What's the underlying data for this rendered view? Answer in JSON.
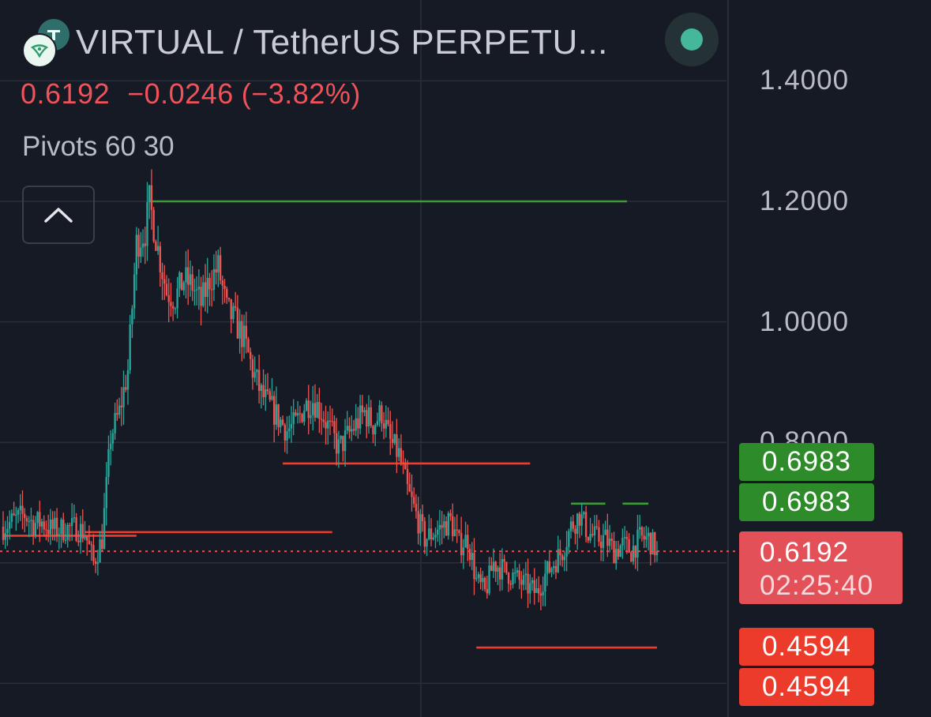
{
  "header": {
    "symbol": "VIRTUAL / TetherUS PERPETU...",
    "last_price": "0.6192",
    "change": "−0.0246",
    "change_pct": "(−3.82%)",
    "indicator": "Pivots 60 30"
  },
  "price_tags": {
    "pivot_high_1": "0.6983",
    "pivot_high_2": "0.6983",
    "last_price": "0.6192",
    "countdown": "02:25:40",
    "pivot_low_1": "0.4594",
    "pivot_low_2": "0.4594"
  },
  "colors": {
    "background": "#161a25",
    "up": "#26a69a",
    "down": "#ef5350",
    "pivot_high": "#3f9a3a",
    "pivot_low": "#f23b2a",
    "grid": "#2a2e39"
  },
  "icons": [
    "exchange-logo-icon",
    "virtual-coin-icon",
    "status-dot-icon",
    "chevron-up-icon"
  ],
  "chart_data": {
    "type": "candlestick",
    "title": "VIRTUAL / TetherUS PERPETU...",
    "y_ticks": [
      "1.4000",
      "1.2000",
      "1.0000",
      "0.8000"
    ],
    "y_axis_side": "right",
    "ylim": [
      0.37,
      1.45
    ],
    "grid": true,
    "last_price": 0.6192,
    "series": [
      {
        "name": "price",
        "points": [
          [
            0,
            0.66
          ],
          [
            5,
            0.67
          ],
          [
            10,
            0.68
          ],
          [
            14,
            0.665
          ],
          [
            18,
            0.668
          ],
          [
            22,
            0.656
          ],
          [
            26,
            0.655
          ],
          [
            30,
            0.657
          ],
          [
            34,
            0.658
          ],
          [
            38,
            0.65
          ],
          [
            42,
            0.6
          ],
          [
            46,
            0.64
          ],
          [
            50,
            0.81
          ],
          [
            54,
            0.85
          ],
          [
            58,
            0.92
          ],
          [
            62,
            1.13
          ],
          [
            66,
            1.15
          ],
          [
            68,
            1.2
          ],
          [
            72,
            1.12
          ],
          [
            76,
            1.05
          ],
          [
            80,
            1.04
          ],
          [
            84,
            1.07
          ],
          [
            88,
            1.06
          ],
          [
            92,
            1.03
          ],
          [
            96,
            1.07
          ],
          [
            100,
            1.09
          ],
          [
            104,
            1.02
          ],
          [
            108,
            1.0
          ],
          [
            112,
            0.97
          ],
          [
            116,
            0.92
          ],
          [
            120,
            0.88
          ],
          [
            124,
            0.86
          ],
          [
            128,
            0.84
          ],
          [
            132,
            0.82
          ],
          [
            136,
            0.83
          ],
          [
            140,
            0.86
          ],
          [
            144,
            0.87
          ],
          [
            148,
            0.85
          ],
          [
            152,
            0.82
          ],
          [
            156,
            0.79
          ],
          [
            160,
            0.81
          ],
          [
            164,
            0.83
          ],
          [
            168,
            0.85
          ],
          [
            172,
            0.83
          ],
          [
            176,
            0.85
          ],
          [
            180,
            0.8
          ],
          [
            184,
            0.78
          ],
          [
            188,
            0.72
          ],
          [
            192,
            0.68
          ],
          [
            196,
            0.64
          ],
          [
            200,
            0.65
          ],
          [
            204,
            0.66
          ],
          [
            208,
            0.67
          ],
          [
            212,
            0.63
          ],
          [
            216,
            0.64
          ],
          [
            220,
            0.57
          ],
          [
            224,
            0.55
          ],
          [
            228,
            0.6
          ],
          [
            232,
            0.59
          ],
          [
            236,
            0.58
          ],
          [
            240,
            0.57
          ],
          [
            244,
            0.56
          ],
          [
            248,
            0.55
          ],
          [
            252,
            0.58
          ],
          [
            256,
            0.6
          ],
          [
            260,
            0.62
          ],
          [
            264,
            0.66
          ],
          [
            268,
            0.68
          ],
          [
            272,
            0.65
          ],
          [
            276,
            0.64
          ],
          [
            280,
            0.64
          ],
          [
            284,
            0.62
          ],
          [
            288,
            0.63
          ],
          [
            292,
            0.62
          ],
          [
            296,
            0.64
          ],
          [
            300,
            0.64
          ],
          [
            304,
            0.62
          ]
        ]
      }
    ],
    "pivot_levels": [
      {
        "kind": "high",
        "value": 1.2,
        "from": 68,
        "to": 290
      },
      {
        "kind": "high",
        "value": 0.6983,
        "from": 264,
        "to": 280
      },
      {
        "kind": "high",
        "value": 0.6983,
        "from": 288,
        "to": 300
      },
      {
        "kind": "low",
        "value": 0.765,
        "from": 130,
        "to": 245
      },
      {
        "kind": "low",
        "value": 0.651,
        "from": 38,
        "to": 153
      },
      {
        "kind": "low",
        "value": 0.645,
        "from": 0,
        "to": 62
      },
      {
        "kind": "low",
        "value": 0.4594,
        "from": 220,
        "to": 304
      }
    ]
  }
}
